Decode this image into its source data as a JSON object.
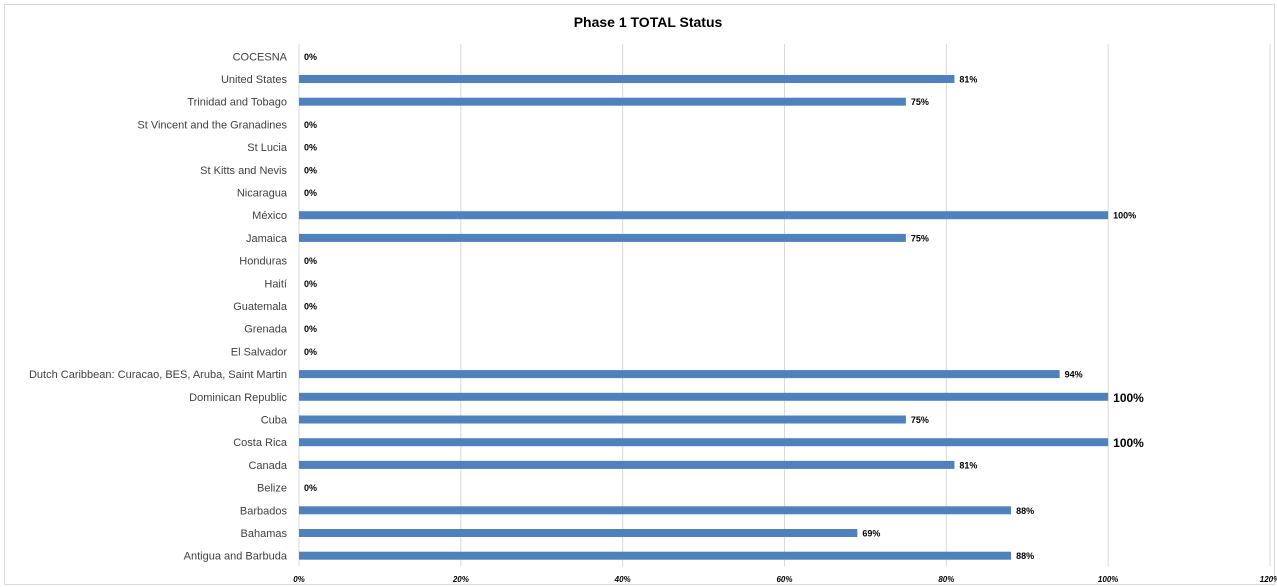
{
  "chart_data": {
    "type": "bar",
    "orientation": "horizontal",
    "title": "Phase 1 TOTAL Status",
    "categories": [
      "COCESNA",
      "United States",
      "Trinidad and Tobago",
      "St Vincent and the Granadines",
      "St Lucia",
      "St Kitts and Nevis",
      "Nicaragua",
      "México",
      "Jamaica",
      "Honduras",
      "Haití",
      "Guatemala",
      "Grenada",
      "El Salvador",
      "Dutch Caribbean: Curacao, BES, Aruba, Saint Martin",
      "Dominican Republic",
      "Cuba",
      "Costa Rica",
      "Canada",
      "Belize",
      "Barbados",
      "Bahamas",
      "Antigua and Barbuda"
    ],
    "values": [
      0,
      81,
      75,
      0,
      0,
      0,
      0,
      100,
      75,
      0,
      0,
      0,
      0,
      0,
      94,
      100,
      75,
      100,
      81,
      0,
      88,
      69,
      88
    ],
    "data_labels": [
      "0%",
      "81%",
      "75%",
      "0%",
      "0%",
      "0%",
      "0%",
      "100%",
      "75%",
      "0%",
      "0%",
      "0%",
      "0%",
      "0%",
      "94%",
      "100%",
      "75%",
      "100%",
      "81%",
      "0%",
      "88%",
      "69%",
      "88%"
    ],
    "highlighted_labels": [
      "Dominican Republic",
      "Costa Rica"
    ],
    "xlim": [
      0,
      120
    ],
    "x_ticks": [
      "0%",
      "20%",
      "40%",
      "60%",
      "80%",
      "100%",
      "120%"
    ],
    "grid": true,
    "colors": {
      "bar": "#4f81bd",
      "grid": "#d9d9d9",
      "highlight_label": "#00b050",
      "text": "#404040"
    }
  }
}
